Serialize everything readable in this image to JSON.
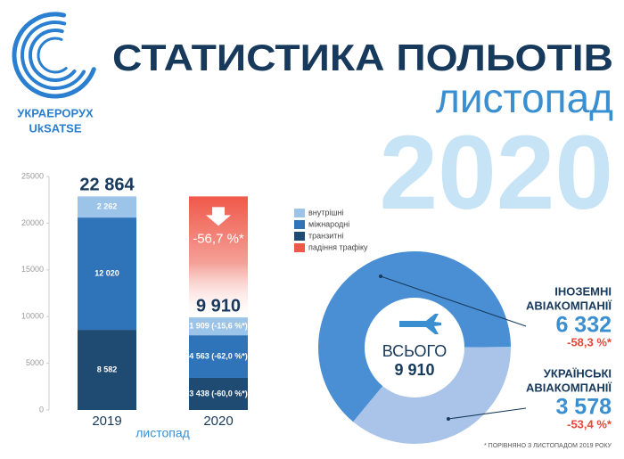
{
  "header": {
    "logo_lines": [
      "УКРАЕРОРУХ",
      "UkSATSE"
    ],
    "title": "СТАТИСТИКА ПОЛЬОТІВ",
    "subtitle": "листопад",
    "year": "2020"
  },
  "chart_data": [
    {
      "type": "bar",
      "stacked": true,
      "x_label": "листопад",
      "categories": [
        "2019",
        "2020"
      ],
      "ylim": [
        0,
        25000
      ],
      "yticks": [
        0,
        5000,
        10000,
        15000,
        20000,
        25000
      ],
      "series": [
        {
          "name": "транзитні",
          "color": "#1f4a72",
          "values": [
            8582,
            3438
          ],
          "value_labels": [
            "8 582",
            "3 438 (-60,0 %*)"
          ]
        },
        {
          "name": "міжнародні",
          "color": "#2f73b8",
          "values": [
            12020,
            4563
          ],
          "value_labels": [
            "12 020",
            "4 563 (-62,0 %*)"
          ]
        },
        {
          "name": "внутрішні",
          "color": "#9cc3e8",
          "values": [
            2262,
            1909
          ],
          "value_labels": [
            "2 262",
            "1 909 (-15,6 %*)"
          ]
        }
      ],
      "totals": [
        22864,
        9910
      ],
      "total_labels": [
        "22 864",
        "9 910"
      ],
      "decline": {
        "name": "падіння трафіку",
        "color": "#f0584a",
        "value": -56.7,
        "label": "-56,7 %*"
      }
    },
    {
      "type": "donut",
      "center_label": "ВСЬОГО",
      "total": 9910,
      "total_label": "9 910",
      "categories": [
        [
          "ІНОЗЕМНІ",
          "АВІАКОМПАНІЇ"
        ],
        [
          "УКРАЇНСЬКІ",
          "АВІАКОМПАНІЇ"
        ]
      ],
      "values": [
        6332,
        3578
      ],
      "value_labels": [
        "6 332",
        "3 578"
      ],
      "change_labels": [
        "-58,3 %*",
        "-53,4 %*"
      ],
      "colors": [
        "#4a8fd3",
        "#a9c4e8"
      ]
    }
  ],
  "footnote": "* ПОРІВНЯНО З ЛИСТОПАДОМ 2019 РОКУ"
}
